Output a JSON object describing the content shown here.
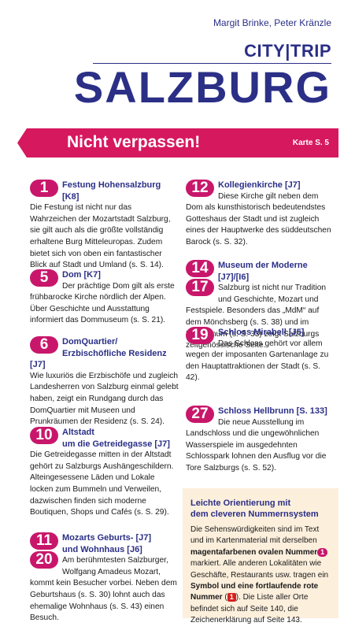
{
  "header": {
    "authors": "Margit Brinke, Peter Kränzle",
    "series": "CITY|TRIP",
    "title": "SALZBURG"
  },
  "banner": {
    "title": "Nicht verpassen!",
    "map_ref": "Karte S. 5"
  },
  "entries": [
    {
      "numbers": [
        "1"
      ],
      "title": [
        "Festung Hohensalzburg [K8]"
      ],
      "text": "Die Festung ist nicht nur das Wahrzeichen der Mozartstadt Salzburg, sie gilt auch als die größte vollständig erhaltene Burg Mitteleuropas. Zudem bietet sich von oben ein fantastischer Blick auf Stadt und Umland (s. S. 14)."
    },
    {
      "numbers": [
        "5"
      ],
      "title": [
        "Dom [K7]"
      ],
      "text": "Der prächtige Dom gilt als erste frühbarocke Kirche nördlich der Alpen. Über Geschichte und Ausstattung informiert das Dommuseum (s. S. 21)."
    },
    {
      "numbers": [
        "6"
      ],
      "title": [
        "DomQuartier/",
        "Erzbischöfliche Residenz [J7]"
      ],
      "text": "Wie luxuriös die Erzbischöfe und zugleich Landesherren von Salzburg einmal gelebt haben, zeigt ein Rundgang durch das DomQuartier mit Museen und Prunkräumen der Residenz (s. S. 24)."
    },
    {
      "numbers": [
        "10"
      ],
      "title": [
        "Altstadt",
        "um die Getreidegasse [J7]"
      ],
      "text": "Die Getreidegasse mitten in der Altstadt gehört zu Salzburgs Aushängeschildern. Alteingesessene Läden und Lokale locken zum Bummeln und Verweilen, dazwischen finden sich moderne Boutiquen, Shops und Cafés (s. S. 29)."
    },
    {
      "numbers": [
        "11",
        "20"
      ],
      "title": [
        "Mozarts Geburts- [J7]",
        "und Wohnhaus [J6]"
      ],
      "text": "Am berühmtesten Salzburger, Wolfgang Amadeus Mozart, kommt kein Besucher vorbei. Neben dem Geburtshaus (s. S. 30) lohnt auch das ehemalige Wohnhaus (s. S. 43) einen Besuch."
    },
    {
      "numbers": [
        "12"
      ],
      "title": [
        "Kollegienkirche [J7]"
      ],
      "text": "Diese Kirche gilt neben dem Dom als kunsthistorisch bedeutendstes Gotteshaus der Stadt und ist zugleich eines der Hauptwerke des süddeutschen Barock (s. S. 32)."
    },
    {
      "numbers": [
        "14",
        "17"
      ],
      "title": [
        "Museum der Moderne [J7]/[I6]"
      ],
      "text": "Salzburg ist nicht nur Tradition und Geschichte, Mozart und Festspiele. Besonders das „MdM“ auf dem Mönchsberg (s. S. 38) und im Rupertinum (s. S. 33) zeigt Salzburgs zeitgenössische Seite."
    },
    {
      "numbers": [
        "19"
      ],
      "title": [
        "Schloss Mirabell [J5]"
      ],
      "text": "Das Schloss gehört vor allem wegen der imposanten Gartenanlage zu den Hauptattraktionen der Stadt (s. S. 42)."
    },
    {
      "numbers": [
        "27"
      ],
      "title": [
        "Schloss Hellbrunn [S. 133]"
      ],
      "text": "Die neue Ausstellung im Landschloss und die ungewöhnlichen Wasserspiele im ausgedehnten Schlosspark lohnen den Ausflug vor die Tore Salzburgs (s. S. 52)."
    }
  ],
  "info_box": {
    "title": [
      "Leichte Orientierung mit",
      "dem cleveren Nummernsystem"
    ],
    "text": [
      {
        "style": "plain",
        "text": "Die Sehenswürdigkeiten sind im Text und im Kartenmaterial mit derselben "
      },
      {
        "style": "bold",
        "text": "magentafarbenen ovalen Nummer"
      },
      {
        "style": "badge",
        "text": "1"
      },
      {
        "style": "plain",
        "text": " markiert. Alle anderen Lokalitäten wie Geschäfte, Restaurants usw. tragen ein "
      },
      {
        "style": "bold",
        "text": "Symbol und eine fortlaufende rote Nummer"
      },
      {
        "style": "plain",
        "text": " ("
      },
      {
        "style": "red-badge",
        "text": "1"
      },
      {
        "style": "plain",
        "text": "). Die Liste aller Orte befindet sich auf Seite 140, die Zeichenerklärung auf Seite 143."
      }
    ]
  }
}
